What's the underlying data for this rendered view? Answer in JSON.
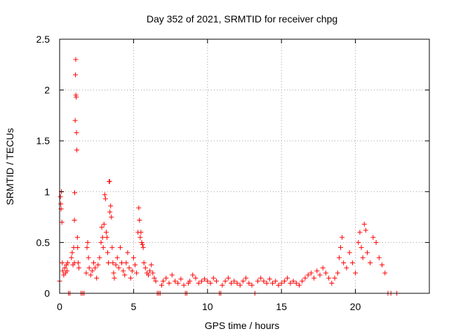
{
  "chart_data": {
    "type": "scatter",
    "title": "Day 352 of 2021, SRMTID for receiver chpg",
    "xlabel": "GPS time / hours",
    "ylabel": "SRMTID / TECUs",
    "xlim": [
      0,
      25
    ],
    "ylim": [
      0,
      2.5
    ],
    "xticks": [
      0,
      5,
      10,
      15,
      20
    ],
    "xtick_labels": [
      "0",
      "5",
      "10",
      "15",
      "20"
    ],
    "yticks": [
      0,
      0.5,
      1,
      1.5,
      2,
      2.5
    ],
    "ytick_labels": [
      "0",
      "0.5",
      "1",
      "1.5",
      "2",
      "2.5"
    ],
    "grid": true,
    "marker": "+",
    "color": "#ff0000",
    "series": [
      {
        "name": "SRMTID",
        "points": [
          [
            0.0,
            0.12
          ],
          [
            0.05,
            0.95
          ],
          [
            0.08,
            0.88
          ],
          [
            0.1,
            0.83
          ],
          [
            0.12,
            1.0
          ],
          [
            0.15,
            0.7
          ],
          [
            0.18,
            0.3
          ],
          [
            0.22,
            0.22
          ],
          [
            0.28,
            0.18
          ],
          [
            0.35,
            0.25
          ],
          [
            0.4,
            0.2
          ],
          [
            0.45,
            0.28
          ],
          [
            0.5,
            0.22
          ],
          [
            0.55,
            0.3
          ],
          [
            0.6,
            0.0
          ],
          [
            0.7,
            0.0
          ],
          [
            0.8,
            0.35
          ],
          [
            0.85,
            0.4
          ],
          [
            0.9,
            0.28
          ],
          [
            0.95,
            0.45
          ],
          [
            1.0,
            0.3
          ],
          [
            1.0,
            0.72
          ],
          [
            1.02,
            0.99
          ],
          [
            1.05,
            1.7
          ],
          [
            1.07,
            2.15
          ],
          [
            1.09,
            2.3
          ],
          [
            1.1,
            1.95
          ],
          [
            1.12,
            1.93
          ],
          [
            1.14,
            1.58
          ],
          [
            1.16,
            1.41
          ],
          [
            1.2,
            0.55
          ],
          [
            1.22,
            0.45
          ],
          [
            1.25,
            0.3
          ],
          [
            1.3,
            0.25
          ],
          [
            1.45,
            0.0
          ],
          [
            1.55,
            0.0
          ],
          [
            1.65,
            0.0
          ],
          [
            1.8,
            0.2
          ],
          [
            1.85,
            0.45
          ],
          [
            1.9,
            0.5
          ],
          [
            1.95,
            0.35
          ],
          [
            2.0,
            0.25
          ],
          [
            2.1,
            0.18
          ],
          [
            2.2,
            0.22
          ],
          [
            2.3,
            0.3
          ],
          [
            2.4,
            0.25
          ],
          [
            2.5,
            0.15
          ],
          [
            2.6,
            0.28
          ],
          [
            2.7,
            0.35
          ],
          [
            2.8,
            0.5
          ],
          [
            2.85,
            0.65
          ],
          [
            2.9,
            0.55
          ],
          [
            2.95,
            0.45
          ],
          [
            3.0,
            0.68
          ],
          [
            3.05,
            0.97
          ],
          [
            3.1,
            0.93
          ],
          [
            3.15,
            0.6
          ],
          [
            3.2,
            0.55
          ],
          [
            3.25,
            0.4
          ],
          [
            3.3,
            0.3
          ],
          [
            3.35,
            1.1
          ],
          [
            3.38,
            1.1
          ],
          [
            3.4,
            0.8
          ],
          [
            3.45,
            0.86
          ],
          [
            3.5,
            0.75
          ],
          [
            3.55,
            0.45
          ],
          [
            3.6,
            0.3
          ],
          [
            3.65,
            0.2
          ],
          [
            3.7,
            0.15
          ],
          [
            3.8,
            0.28
          ],
          [
            3.9,
            0.35
          ],
          [
            4.0,
            0.25
          ],
          [
            4.1,
            0.45
          ],
          [
            4.2,
            0.3
          ],
          [
            4.3,
            0.22
          ],
          [
            4.4,
            0.18
          ],
          [
            4.5,
            0.3
          ],
          [
            4.6,
            0.4
          ],
          [
            4.7,
            0.25
          ],
          [
            4.8,
            0.15
          ],
          [
            4.9,
            0.22
          ],
          [
            5.0,
            0.35
          ],
          [
            5.1,
            0.28
          ],
          [
            5.2,
            0.2
          ],
          [
            5.3,
            0.6
          ],
          [
            5.35,
            0.84
          ],
          [
            5.4,
            0.72
          ],
          [
            5.45,
            0.55
          ],
          [
            5.5,
            0.6
          ],
          [
            5.55,
            0.5
          ],
          [
            5.6,
            0.48
          ],
          [
            5.65,
            0.45
          ],
          [
            5.7,
            0.3
          ],
          [
            5.8,
            0.25
          ],
          [
            5.9,
            0.2
          ],
          [
            6.0,
            0.18
          ],
          [
            6.1,
            0.22
          ],
          [
            6.2,
            0.28
          ],
          [
            6.3,
            0.2
          ],
          [
            6.4,
            0.15
          ],
          [
            6.5,
            0.12
          ],
          [
            6.6,
            0.0
          ],
          [
            6.7,
            0.0
          ],
          [
            6.8,
            0.0
          ],
          [
            6.9,
            0.08
          ],
          [
            7.0,
            0.12
          ],
          [
            7.2,
            0.15
          ],
          [
            7.4,
            0.1
          ],
          [
            7.6,
            0.18
          ],
          [
            7.8,
            0.12
          ],
          [
            8.0,
            0.1
          ],
          [
            8.2,
            0.14
          ],
          [
            8.4,
            0.08
          ],
          [
            8.5,
            0.0
          ],
          [
            8.6,
            0.0
          ],
          [
            8.7,
            0.1
          ],
          [
            8.8,
            0.12
          ],
          [
            9.0,
            0.18
          ],
          [
            9.2,
            0.15
          ],
          [
            9.4,
            0.1
          ],
          [
            9.6,
            0.12
          ],
          [
            9.8,
            0.14
          ],
          [
            10.0,
            0.12
          ],
          [
            10.2,
            0.1
          ],
          [
            10.4,
            0.15
          ],
          [
            10.6,
            0.12
          ],
          [
            10.8,
            0.0
          ],
          [
            10.9,
            0.0
          ],
          [
            11.0,
            0.08
          ],
          [
            11.2,
            0.12
          ],
          [
            11.4,
            0.15
          ],
          [
            11.6,
            0.1
          ],
          [
            11.8,
            0.12
          ],
          [
            12.0,
            0.1
          ],
          [
            12.2,
            0.08
          ],
          [
            12.4,
            0.12
          ],
          [
            12.6,
            0.15
          ],
          [
            12.8,
            0.1
          ],
          [
            13.0,
            0.08
          ],
          [
            13.2,
            0.0
          ],
          [
            13.4,
            0.12
          ],
          [
            13.6,
            0.15
          ],
          [
            13.8,
            0.12
          ],
          [
            14.0,
            0.1
          ],
          [
            14.2,
            0.14
          ],
          [
            14.4,
            0.1
          ],
          [
            14.6,
            0.12
          ],
          [
            14.8,
            0.08
          ],
          [
            15.0,
            0.1
          ],
          [
            15.2,
            0.12
          ],
          [
            15.4,
            0.15
          ],
          [
            15.6,
            0.1
          ],
          [
            15.8,
            0.12
          ],
          [
            16.0,
            0.1
          ],
          [
            16.2,
            0.08
          ],
          [
            16.4,
            0.12
          ],
          [
            16.6,
            0.15
          ],
          [
            16.8,
            0.18
          ],
          [
            17.0,
            0.2
          ],
          [
            17.2,
            0.15
          ],
          [
            17.4,
            0.22
          ],
          [
            17.6,
            0.18
          ],
          [
            17.8,
            0.25
          ],
          [
            18.0,
            0.2
          ],
          [
            18.2,
            0.15
          ],
          [
            18.4,
            0.1
          ],
          [
            18.6,
            0.15
          ],
          [
            18.8,
            0.2
          ],
          [
            18.9,
            0.35
          ],
          [
            19.0,
            0.45
          ],
          [
            19.1,
            0.55
          ],
          [
            19.2,
            0.3
          ],
          [
            19.4,
            0.25
          ],
          [
            19.6,
            0.4
          ],
          [
            19.8,
            0.3
          ],
          [
            20.0,
            0.2
          ],
          [
            20.2,
            0.5
          ],
          [
            20.3,
            0.6
          ],
          [
            20.4,
            0.45
          ],
          [
            20.5,
            0.35
          ],
          [
            20.6,
            0.68
          ],
          [
            20.7,
            0.62
          ],
          [
            20.8,
            0.4
          ],
          [
            21.0,
            0.3
          ],
          [
            21.2,
            0.55
          ],
          [
            21.4,
            0.5
          ],
          [
            21.6,
            0.35
          ],
          [
            21.8,
            0.28
          ],
          [
            22.0,
            0.2
          ],
          [
            22.2,
            0.0
          ],
          [
            22.4,
            0.0
          ],
          [
            22.8,
            0.0
          ]
        ]
      }
    ]
  }
}
